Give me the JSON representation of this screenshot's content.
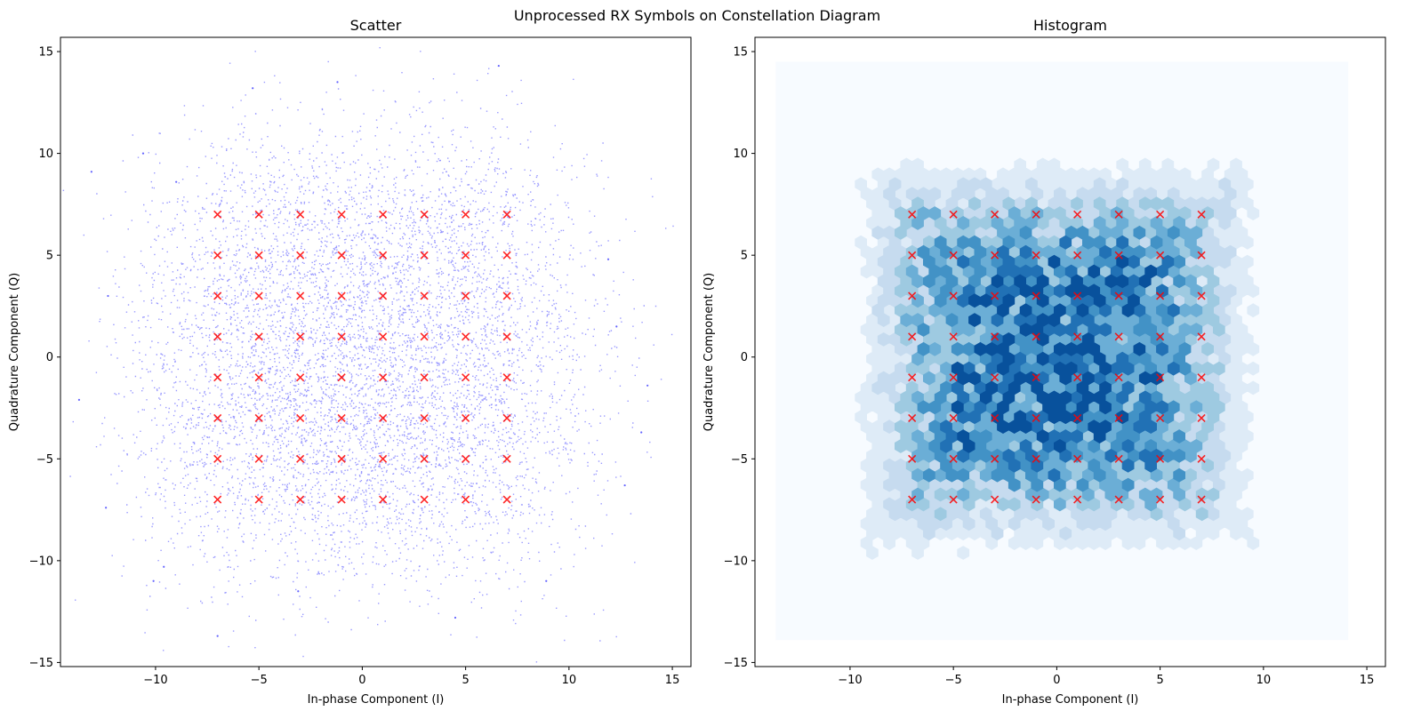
{
  "figure": {
    "suptitle": "Unprocessed RX Symbols on Constellation Diagram"
  },
  "chart_data": [
    {
      "type": "scatter",
      "title": "Scatter",
      "xlabel": "In-phase Component (I)",
      "ylabel": "Quadrature Component (Q)",
      "xlim": [
        -14.6,
        15.9
      ],
      "ylim": [
        -15.2,
        15.7
      ],
      "xticks": [
        -10,
        -5,
        0,
        5,
        10,
        15
      ],
      "yticks": [
        -15,
        -10,
        -5,
        0,
        5,
        10,
        15
      ],
      "xtick_labels": [
        "−10",
        "−5",
        "0",
        "5",
        "10",
        "15"
      ],
      "ytick_labels": [
        "−15",
        "−10",
        "−5",
        "0",
        "5",
        "10",
        "15"
      ],
      "grid": false,
      "series": [
        {
          "kind": "received_symbols",
          "color": "#0000ff",
          "alpha": 0.4,
          "note_distribution": "16-QAM-like noisy cloud centered near origin, spread ~±13",
          "sample_points": [
            [
              -13.1,
              9.1
            ],
            [
              -12.3,
              3.0
            ],
            [
              -13.7,
              -2.1
            ],
            [
              -12.4,
              -7.4
            ],
            [
              -10.6,
              10.0
            ],
            [
              -10.1,
              -11.0
            ],
            [
              -9.0,
              8.6
            ],
            [
              -9.6,
              -10.3
            ],
            [
              13.8,
              -1.4
            ],
            [
              12.7,
              -6.3
            ],
            [
              13.5,
              -3.7
            ],
            [
              11.9,
              4.8
            ],
            [
              12.3,
              1.5
            ],
            [
              -1.2,
              13.5
            ],
            [
              6.6,
              14.3
            ],
            [
              -5.3,
              13.2
            ],
            [
              -7.0,
              -13.7
            ],
            [
              -3.1,
              -11.5
            ],
            [
              4.5,
              -12.8
            ],
            [
              8.9,
              -11.0
            ]
          ]
        },
        {
          "kind": "reference_constellation",
          "marker": "x",
          "color": "#ff0000",
          "points_i": [
            -7,
            -5,
            -3,
            -1,
            1,
            3,
            5,
            7
          ],
          "points_q": [
            -7,
            -5,
            -3,
            -1,
            1,
            3,
            5,
            7
          ]
        }
      ]
    },
    {
      "type": "heatmap",
      "title": "Histogram",
      "xlabel": "In-phase Component (I)",
      "ylabel": "Quadrature Component (Q)",
      "xlim": [
        -14.6,
        15.9
      ],
      "ylim": [
        -15.2,
        15.7
      ],
      "xticks": [
        -10,
        -5,
        0,
        5,
        10,
        15
      ],
      "yticks": [
        -15,
        -10,
        -5,
        0,
        5,
        10,
        15
      ],
      "xtick_labels": [
        "−10",
        "−5",
        "0",
        "5",
        "10",
        "15"
      ],
      "ytick_labels": [
        "−15",
        "−10",
        "−5",
        "0",
        "5",
        "10",
        "15"
      ],
      "grid": false,
      "hexbin_extent": {
        "x": [
          -13.6,
          14.1
        ],
        "y": [
          -13.9,
          14.5
        ]
      },
      "colormap": "Blues",
      "colors": [
        "#f7fbff",
        "#deebf7",
        "#c6dbef",
        "#9ecae1",
        "#6baed6",
        "#4292c6",
        "#2171b5",
        "#08519c"
      ],
      "series": [
        {
          "kind": "reference_constellation",
          "marker": "x",
          "color": "#ff0000",
          "points_i": [
            -7,
            -5,
            -3,
            -1,
            1,
            3,
            5,
            7
          ],
          "points_q": [
            -7,
            -5,
            -3,
            -1,
            1,
            3,
            5,
            7
          ]
        }
      ]
    }
  ]
}
